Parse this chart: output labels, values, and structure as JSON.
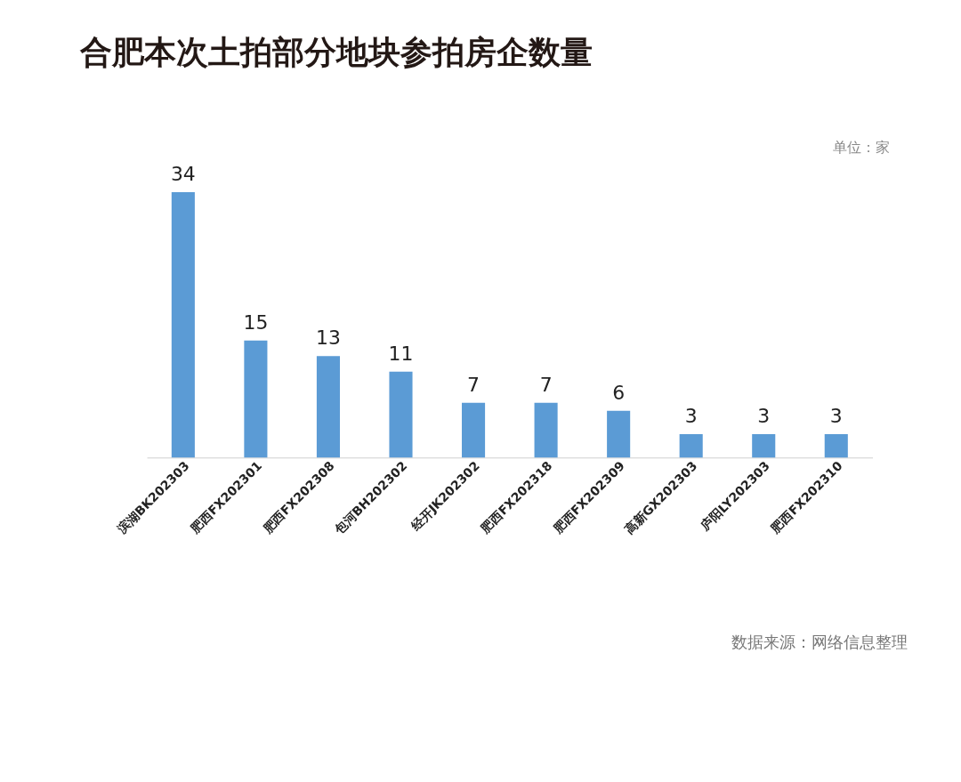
{
  "chart_data": {
    "type": "bar",
    "title": "合肥本次土拍部分地块参拍房企数量",
    "categories": [
      "滨湖BK202303",
      "肥西FX202301",
      "肥西FX202308",
      "包河BH202302",
      "经开JK202302",
      "肥西FX202318",
      "肥西FX202309",
      "高新GX202303",
      "庐阳LY202303",
      "肥西FX202310"
    ],
    "values": [
      34,
      15,
      13,
      11,
      7,
      7,
      6,
      3,
      3,
      3
    ],
    "color": "#5b9bd5",
    "data_labels": true,
    "grid": false,
    "tick_labels": "x",
    "annotations": [
      "单位：家",
      "数据来源：网络信息整理"
    ]
  }
}
